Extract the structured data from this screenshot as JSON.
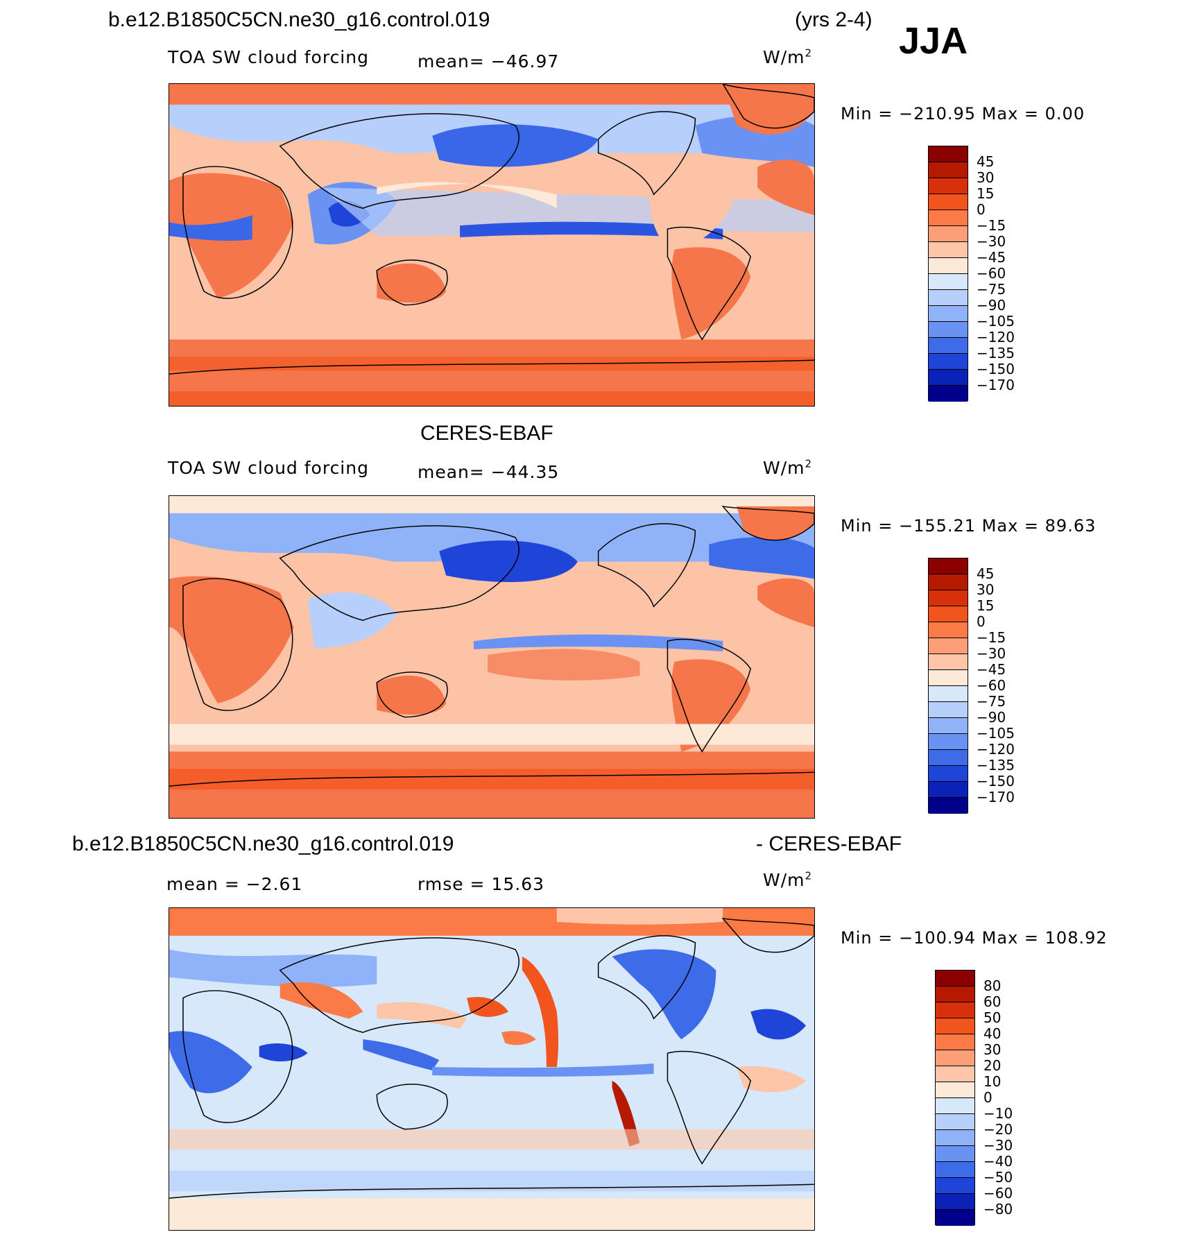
{
  "header": {
    "case": "b.e12.B1850C5CN.ne30_g16.control.019",
    "years": "(yrs 2-4)",
    "season": "JJA"
  },
  "panels": [
    {
      "id": "model",
      "variable": "TOA SW cloud forcing",
      "mean_text": "mean= −46.97",
      "units": "W/m",
      "units_exp": "2",
      "min_max_text": "Min  =  −210.95  Max  =     0.00",
      "colorbar_labels": [
        "45",
        "30",
        "15",
        "0",
        "−15",
        "−30",
        "−45",
        "−60",
        "−75",
        "−90",
        "−105",
        "−120",
        "−135",
        "−150",
        "−170"
      ],
      "colorbar_colors": [
        "#8b0000",
        "#b51a00",
        "#d7300a",
        "#f2541e",
        "#fb7a45",
        "#fc9e78",
        "#fdc6a8",
        "#fde9d8",
        "#d7e8fb",
        "#b6d0fb",
        "#8fb2f8",
        "#6a92f2",
        "#3e6be8",
        "#1f45d8",
        "#0b22b8",
        "#00008b"
      ],
      "field": {
        "continents": "#f5764a",
        "tropics_ocean": "#fcc3a7",
        "storm_tracks": "#3a67e8",
        "southern_ocean": "#f5764a",
        "itcz": "#2b55e0"
      }
    },
    {
      "id": "obs",
      "title": "CERES-EBAF",
      "variable": "TOA SW cloud forcing",
      "mean_text": "mean= −44.35",
      "units": "W/m",
      "units_exp": "2",
      "min_max_text": "Min  =  −155.21  Max  =   89.63",
      "colorbar_labels": [
        "45",
        "30",
        "15",
        "0",
        "−15",
        "−30",
        "−45",
        "−60",
        "−75",
        "−90",
        "−105",
        "−120",
        "−135",
        "−150",
        "−170"
      ],
      "colorbar_colors": [
        "#8b0000",
        "#b51a00",
        "#d7300a",
        "#f2541e",
        "#fb7a45",
        "#fc9e78",
        "#fdc6a8",
        "#fde9d8",
        "#d7e8fb",
        "#b6d0fb",
        "#8fb2f8",
        "#6a92f2",
        "#3e6be8",
        "#1f45d8",
        "#0b22b8",
        "#00008b"
      ]
    },
    {
      "id": "diff",
      "title_left": "b.e12.B1850C5CN.ne30_g16.control.019",
      "title_right": "- CERES-EBAF",
      "mean_text": "mean  =   −2.61",
      "rmse_text": "rmse  =   15.63",
      "units": "W/m",
      "units_exp": "2",
      "min_max_text": "Min  =  −100.94  Max  =  108.92",
      "colorbar_labels": [
        "80",
        "60",
        "50",
        "40",
        "30",
        "20",
        "10",
        "0",
        "−10",
        "−20",
        "−30",
        "−40",
        "−50",
        "−60",
        "−80"
      ],
      "colorbar_colors": [
        "#8b0000",
        "#b51a00",
        "#d7300a",
        "#f2541e",
        "#fb7a45",
        "#fc9e78",
        "#fdc6a8",
        "#fde9d8",
        "#d7e8fb",
        "#b6d0fb",
        "#8fb2f8",
        "#6a92f2",
        "#3e6be8",
        "#1f45d8",
        "#0b22b8",
        "#00008b"
      ]
    }
  ]
}
